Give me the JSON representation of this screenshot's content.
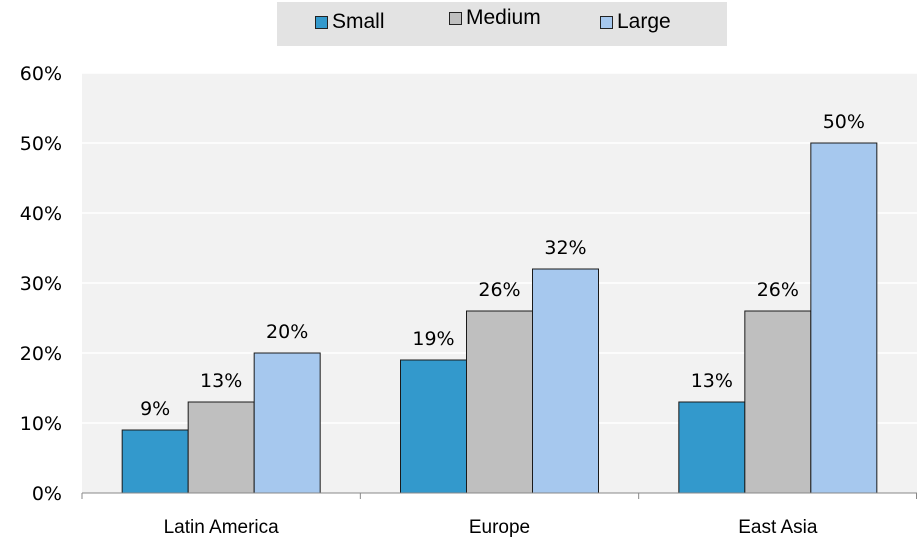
{
  "chart_data": {
    "type": "bar",
    "categories": [
      "Latin America",
      "Europe",
      "East Asia"
    ],
    "series": [
      {
        "name": "Small",
        "values": [
          9,
          19,
          13
        ],
        "labels": [
          "9%",
          "19%",
          "13%"
        ],
        "color": "#3399cc"
      },
      {
        "name": "Medium",
        "values": [
          13,
          26,
          26
        ],
        "labels": [
          "13%",
          "26%",
          "26%"
        ],
        "color": "#bfbfbf"
      },
      {
        "name": "Large",
        "values": [
          20,
          32,
          50
        ],
        "labels": [
          "20%",
          "32%",
          "50%"
        ],
        "color": "#a6c8ee"
      }
    ],
    "y_ticks": [
      "0%",
      "10%",
      "20%",
      "30%",
      "40%",
      "50%",
      "60%"
    ],
    "ylim": [
      0,
      60
    ],
    "grid": true,
    "legend_position": "top",
    "plot_background": "#f2f2f2",
    "gridline_color": "#ffffff"
  }
}
